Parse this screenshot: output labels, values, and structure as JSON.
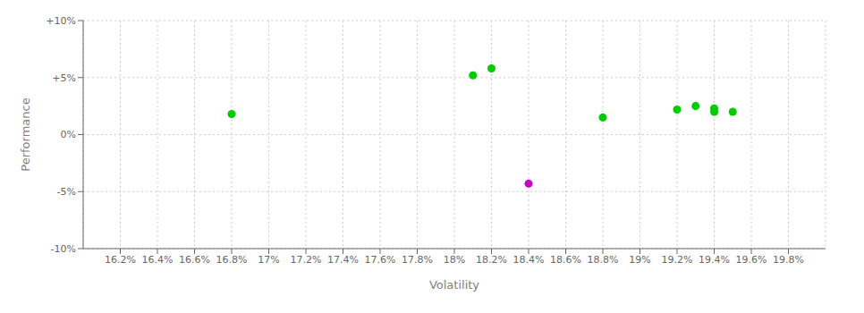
{
  "chart_data": {
    "type": "scatter",
    "xlabel": "Volatility",
    "ylabel": "Performance",
    "xlim": [
      0.16,
      0.2
    ],
    "ylim": [
      -0.1,
      0.1
    ],
    "xticks": [
      {
        "value": 0.162,
        "label": "16.2%"
      },
      {
        "value": 0.164,
        "label": "16.4%"
      },
      {
        "value": 0.166,
        "label": "16.6%"
      },
      {
        "value": 0.168,
        "label": "16.8%"
      },
      {
        "value": 0.17,
        "label": "17%"
      },
      {
        "value": 0.172,
        "label": "17.2%"
      },
      {
        "value": 0.174,
        "label": "17.4%"
      },
      {
        "value": 0.176,
        "label": "17.6%"
      },
      {
        "value": 0.178,
        "label": "17.8%"
      },
      {
        "value": 0.18,
        "label": "18%"
      },
      {
        "value": 0.182,
        "label": "18.2%"
      },
      {
        "value": 0.184,
        "label": "18.4%"
      },
      {
        "value": 0.186,
        "label": "18.6%"
      },
      {
        "value": 0.188,
        "label": "18.8%"
      },
      {
        "value": 0.19,
        "label": "19%"
      },
      {
        "value": 0.192,
        "label": "19.2%"
      },
      {
        "value": 0.194,
        "label": "19.4%"
      },
      {
        "value": 0.196,
        "label": "19.6%"
      },
      {
        "value": 0.198,
        "label": "19.8%"
      }
    ],
    "yticks": [
      {
        "value": -0.1,
        "label": "-10%"
      },
      {
        "value": -0.05,
        "label": "-5%"
      },
      {
        "value": 0.0,
        "label": "0%"
      },
      {
        "value": 0.05,
        "label": "+5%"
      },
      {
        "value": 0.1,
        "label": "+10%"
      }
    ],
    "grid": true,
    "marker": "circle",
    "series": [
      {
        "color": "#00cc00",
        "x": [
          0.168,
          0.181,
          0.182,
          0.188,
          0.192,
          0.193,
          0.194,
          0.194,
          0.195
        ],
        "values": [
          0.018,
          0.052,
          0.058,
          0.015,
          0.022,
          0.025,
          0.02,
          0.023,
          0.02
        ]
      },
      {
        "color": "#cc00cc",
        "x": [
          0.184
        ],
        "values": [
          -0.043
        ]
      }
    ]
  }
}
